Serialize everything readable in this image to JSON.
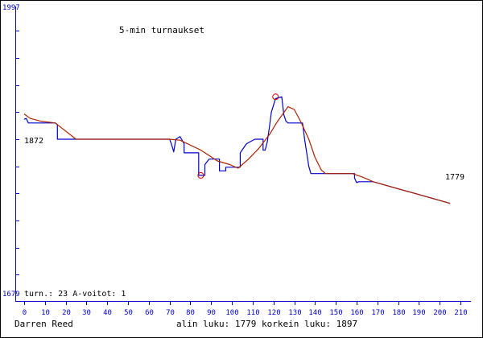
{
  "chart_data": {
    "type": "line",
    "title": "5-min turnaukset",
    "ylim": [
      1679,
      1997
    ],
    "y_top_label": "1997",
    "y_bottom_label": "1679",
    "xlim": [
      0,
      210
    ],
    "x_ticks": [
      "0",
      "10",
      "20",
      "30",
      "40",
      "50",
      "60",
      "70",
      "80",
      "90",
      "100",
      "110",
      "120",
      "130",
      "140",
      "150",
      "160",
      "170",
      "180",
      "190",
      "200",
      "210"
    ],
    "y_tick_values": [
      1700,
      1730,
      1760,
      1790,
      1820,
      1850,
      1880,
      1910,
      1940,
      1970
    ],
    "start_label": "1872",
    "end_label": "1779",
    "stats_text": "turn.: 23  A-voitot: 1",
    "player": "Darren Reed",
    "footer_stats": "alin luku: 1779  korkein luku: 1897",
    "colors": {
      "rating": "#0000cc",
      "average": "#aa2200",
      "axis": "#0000cc",
      "marker": "#cc0000"
    },
    "series": [
      {
        "values": [
          [
            0,
            1872
          ],
          [
            1,
            1873
          ],
          [
            2,
            1868
          ],
          [
            15,
            1868
          ],
          [
            16,
            1866
          ],
          [
            16,
            1850
          ],
          [
            25,
            1850
          ],
          [
            70,
            1850
          ],
          [
            71,
            1844
          ],
          [
            72,
            1836
          ],
          [
            73,
            1850
          ],
          [
            75,
            1853
          ],
          [
            77,
            1845
          ],
          [
            77,
            1835
          ],
          [
            80,
            1835
          ],
          [
            84,
            1835
          ],
          [
            84,
            1810
          ],
          [
            87,
            1810
          ],
          [
            87,
            1822
          ],
          [
            89,
            1828
          ],
          [
            94,
            1828
          ],
          [
            94,
            1815
          ],
          [
            97,
            1815
          ],
          [
            97,
            1819
          ],
          [
            104,
            1819
          ],
          [
            104,
            1835
          ],
          [
            107,
            1845
          ],
          [
            111,
            1850
          ],
          [
            115,
            1850
          ],
          [
            115,
            1838
          ],
          [
            116,
            1838
          ],
          [
            117,
            1847
          ],
          [
            118,
            1863
          ],
          [
            119,
            1880
          ],
          [
            121,
            1895
          ],
          [
            124,
            1897
          ],
          [
            125,
            1877
          ],
          [
            126,
            1870
          ],
          [
            127,
            1868
          ],
          [
            134,
            1868
          ],
          [
            135,
            1850
          ],
          [
            136,
            1835
          ],
          [
            137,
            1820
          ],
          [
            138,
            1812
          ],
          [
            145,
            1812
          ],
          [
            159,
            1812
          ],
          [
            159,
            1807
          ],
          [
            160,
            1802
          ],
          [
            161,
            1803
          ],
          [
            168,
            1803
          ],
          [
            205,
            1779
          ]
        ]
      },
      {
        "values": [
          [
            0,
            1878
          ],
          [
            3,
            1873
          ],
          [
            8,
            1870
          ],
          [
            15,
            1868
          ],
          [
            25,
            1850
          ],
          [
            70,
            1850
          ],
          [
            75,
            1849
          ],
          [
            85,
            1838
          ],
          [
            93,
            1826
          ],
          [
            99,
            1822
          ],
          [
            103,
            1818
          ],
          [
            108,
            1828
          ],
          [
            113,
            1840
          ],
          [
            118,
            1855
          ],
          [
            122,
            1870
          ],
          [
            127,
            1886
          ],
          [
            130,
            1883
          ],
          [
            133,
            1870
          ],
          [
            137,
            1850
          ],
          [
            140,
            1830
          ],
          [
            143,
            1816
          ],
          [
            145,
            1812
          ],
          [
            158,
            1812
          ],
          [
            163,
            1808
          ],
          [
            168,
            1803
          ],
          [
            205,
            1779
          ]
        ]
      }
    ],
    "markers": [
      [
        85,
        1810
      ],
      [
        121,
        1897
      ]
    ]
  }
}
